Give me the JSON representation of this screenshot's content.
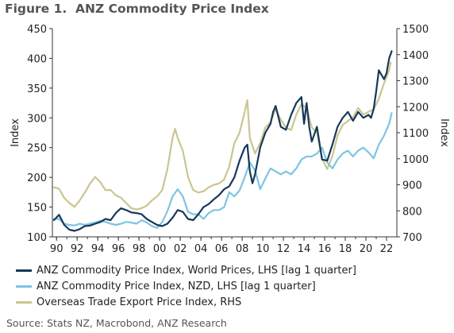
{
  "figure": {
    "title": "Figure 1.  ANZ Commodity Price Index",
    "source": "Source: Stats NZ, Macrobond, ANZ Research"
  },
  "colors": {
    "world": "#16385a",
    "nzd": "#7ec4e3",
    "export": "#c9c691",
    "axis": "#333333"
  },
  "chart_data": {
    "type": "line",
    "title": "ANZ Commodity Price Index",
    "xlabel": "",
    "ylabel": "Index",
    "ylabel_right": "Index",
    "xlim": [
      1989.6,
      2023.0
    ],
    "ylim": [
      100,
      450
    ],
    "ylim_right": [
      700,
      1500
    ],
    "x_tick_values": [
      1990,
      1992,
      1994,
      1996,
      1998,
      2000,
      2002,
      2004,
      2006,
      2008,
      2010,
      2012,
      2014,
      2016,
      2018,
      2020,
      2022
    ],
    "x_tick_labels": [
      "90",
      "92",
      "94",
      "96",
      "98",
      "00",
      "02",
      "04",
      "06",
      "08",
      "10",
      "12",
      "14",
      "16",
      "18",
      "20",
      "22"
    ],
    "y_ticks": [
      100,
      150,
      200,
      250,
      300,
      350,
      400,
      450
    ],
    "y_ticks_right": [
      700,
      800,
      900,
      1000,
      1100,
      1200,
      1300,
      1400,
      1500
    ],
    "grid": false,
    "legend_position": "bottom",
    "series": [
      {
        "name": "ANZ Commodity Price Index, World Prices, LHS [lag 1 quarter]",
        "axis": "left",
        "x": [
          1989.75,
          1990.25,
          1990.75,
          1991.25,
          1991.75,
          1992.25,
          1992.75,
          1993.25,
          1993.75,
          1994.25,
          1994.75,
          1995.25,
          1995.75,
          1996.25,
          1996.75,
          1997.25,
          1997.75,
          1998.25,
          1998.75,
          1999.25,
          1999.75,
          2000.25,
          2000.75,
          2001.25,
          2001.75,
          2002.25,
          2002.75,
          2003.25,
          2003.75,
          2004.25,
          2004.75,
          2005.25,
          2005.75,
          2006.25,
          2006.75,
          2007.25,
          2007.75,
          2008.25,
          2008.5,
          2008.75,
          2009.0,
          2009.25,
          2009.75,
          2010.25,
          2010.75,
          2011.0,
          2011.25,
          2011.75,
          2012.25,
          2012.75,
          2013.25,
          2013.75,
          2014.0,
          2014.25,
          2014.5,
          2014.75,
          2015.25,
          2015.75,
          2016.25,
          2016.75,
          2017.25,
          2017.75,
          2018.25,
          2018.75,
          2019.25,
          2019.75,
          2020.25,
          2020.5,
          2020.75,
          2021.0,
          2021.25,
          2021.75,
          2022.0,
          2022.25,
          2022.5
        ],
        "values": [
          128,
          137,
          120,
          112,
          110,
          113,
          118,
          119,
          122,
          125,
          130,
          128,
          140,
          148,
          145,
          141,
          140,
          138,
          130,
          125,
          120,
          118,
          122,
          132,
          145,
          142,
          130,
          128,
          138,
          150,
          155,
          163,
          170,
          180,
          185,
          200,
          228,
          250,
          255,
          210,
          190,
          205,
          250,
          275,
          290,
          310,
          320,
          285,
          280,
          305,
          325,
          335,
          290,
          325,
          285,
          260,
          285,
          230,
          228,
          255,
          285,
          300,
          310,
          295,
          310,
          300,
          305,
          300,
          315,
          345,
          380,
          365,
          375,
          400,
          412
        ]
      },
      {
        "name": "ANZ Commodity Price Index, NZD, LHS [lag 1 quarter]",
        "axis": "left",
        "x": [
          1989.75,
          1990.25,
          1990.75,
          1991.25,
          1991.75,
          1992.25,
          1992.75,
          1993.25,
          1993.75,
          1994.25,
          1994.75,
          1995.25,
          1995.75,
          1996.25,
          1996.75,
          1997.25,
          1997.75,
          1998.25,
          1998.75,
          1999.25,
          1999.75,
          2000.25,
          2000.75,
          2001.25,
          2001.75,
          2002.25,
          2002.75,
          2003.25,
          2003.75,
          2004.25,
          2004.75,
          2005.25,
          2005.75,
          2006.25,
          2006.75,
          2007.25,
          2007.75,
          2008.25,
          2008.75,
          2009.25,
          2009.75,
          2010.25,
          2010.75,
          2011.25,
          2011.75,
          2012.25,
          2012.75,
          2013.25,
          2013.75,
          2014.25,
          2014.75,
          2015.25,
          2015.75,
          2016.25,
          2016.75,
          2017.25,
          2017.75,
          2018.25,
          2018.75,
          2019.25,
          2019.75,
          2020.25,
          2020.75,
          2021.25,
          2021.75,
          2022.25,
          2022.5
        ],
        "values": [
          130,
          130,
          122,
          120,
          119,
          122,
          120,
          122,
          124,
          127,
          125,
          122,
          120,
          122,
          125,
          124,
          122,
          128,
          124,
          118,
          115,
          125,
          143,
          168,
          180,
          168,
          142,
          138,
          138,
          130,
          140,
          145,
          145,
          150,
          175,
          168,
          178,
          200,
          225,
          212,
          180,
          198,
          215,
          210,
          205,
          210,
          205,
          215,
          230,
          235,
          235,
          240,
          250,
          225,
          215,
          230,
          240,
          245,
          235,
          245,
          250,
          242,
          232,
          255,
          270,
          290,
          308
        ]
      },
      {
        "name": "Overseas Trade Export Price Index, RHS",
        "axis": "right",
        "x": [
          1989.75,
          1990.25,
          1990.75,
          1991.25,
          1991.75,
          1992.25,
          1992.75,
          1993.25,
          1993.75,
          1994.25,
          1994.75,
          1995.25,
          1995.75,
          1996.25,
          1996.75,
          1997.25,
          1997.75,
          1998.25,
          1998.75,
          1999.25,
          1999.75,
          2000.25,
          2000.75,
          2001.25,
          2001.5,
          2001.75,
          2002.25,
          2002.75,
          2003.25,
          2003.75,
          2004.25,
          2004.75,
          2005.25,
          2005.75,
          2006.25,
          2006.75,
          2007.25,
          2007.75,
          2008.25,
          2008.5,
          2008.75,
          2009.25,
          2009.75,
          2010.25,
          2010.75,
          2011.25,
          2011.75,
          2012.25,
          2012.75,
          2013.25,
          2013.75,
          2014.25,
          2014.75,
          2015.25,
          2015.75,
          2016.25,
          2016.75,
          2017.25,
          2017.75,
          2018.25,
          2018.75,
          2019.25,
          2019.75,
          2020.25,
          2020.75,
          2021.25,
          2021.75,
          2022.25,
          2022.4
        ],
        "values": [
          890,
          885,
          850,
          830,
          815,
          840,
          870,
          905,
          930,
          910,
          880,
          880,
          860,
          850,
          830,
          810,
          805,
          810,
          820,
          840,
          855,
          880,
          960,
          1080,
          1115,
          1080,
          1030,
          930,
          880,
          870,
          875,
          890,
          900,
          905,
          920,
          970,
          1060,
          1100,
          1180,
          1225,
          1080,
          1020,
          1060,
          1120,
          1140,
          1190,
          1150,
          1120,
          1110,
          1170,
          1210,
          1195,
          1120,
          1100,
          1000,
          960,
          1010,
          1090,
          1130,
          1145,
          1160,
          1195,
          1170,
          1180,
          1190,
          1230,
          1290,
          1340,
          1370
        ]
      }
    ]
  }
}
